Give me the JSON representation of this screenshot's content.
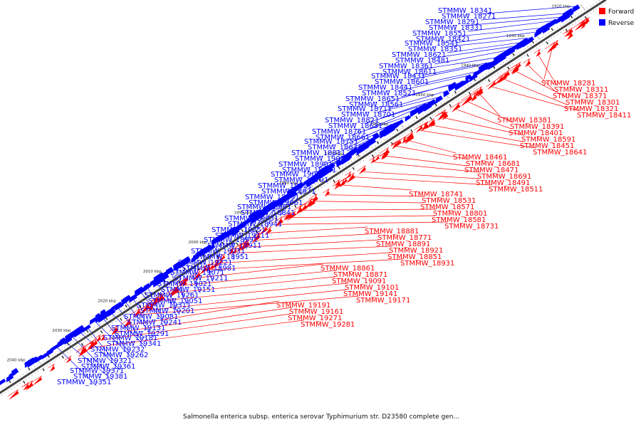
{
  "caption": "Salmonella enterica subsp. enterica serovar Typhimurium str. D23580 complete gen...",
  "legend": [
    {
      "label": "Forward",
      "color": "#ff0000"
    },
    {
      "label": "Reverse",
      "color": "#0000ff"
    }
  ],
  "colors": {
    "forward": "#ff0000",
    "reverse": "#0000ff",
    "backbone": "#444444"
  },
  "scale_ticks": [
    "1920 kbp",
    "1930 kbp",
    "1940 kbp",
    "1950 kbp",
    "1960 kbp",
    "1970 kbp",
    "1980 kbp",
    "1990 kbp",
    "2000 kbp",
    "2010 kbp",
    "2020 kbp",
    "2030 kbp",
    "2040 kbp"
  ],
  "reverse_labels": [
    "STMMW_18341",
    "STMMW_18271",
    "STMMW_18291",
    "STMMW_18331",
    "STMMW_18551",
    "STMMW_18421",
    "STMMW_18541",
    "STMMW_18351",
    "STMMW_18621",
    "STMMW_18481",
    "STMMW_18361",
    "STMMW_18611",
    "STMMW_18431",
    "STMMW_18601",
    "STMMW_18441",
    "STMMW_18521",
    "STMMW_18651",
    "STMMW_18561",
    "STMMW_18711",
    "STMMW_18701",
    "STMMW_18821",
    "STMMW_18631",
    "STMMW_18761",
    "STMMW_18661",
    "STMMW_18751",
    "STMMW_18671",
    "STMMW_18811",
    "STMMW_19011",
    "STMMW_18901",
    "STMMW_18721",
    "STMMW_19001",
    "STMMW_18791",
    "STMMW_19121",
    "STMMW_18971",
    "STMMW_18831",
    "STMMW_19061",
    "STMMW_18961",
    "STMMW_18841",
    "STMMW_19031",
    "STMMW_18941",
    "STMMW_19251",
    "STMMW_19111",
    "STMMW_18991",
    "STMMW_18911",
    "STMMW_19231",
    "STMMW_18951",
    "STMMW_19221",
    "STMMW_18981",
    "STMMW_19071",
    "STMMW_19211",
    "STMMW_19021",
    "STMMW_19151",
    "STMMW_19261",
    "STMMW_19051",
    "STMMW_19311",
    "STMMW_19201",
    "STMMW_19081",
    "STMMW_19241",
    "STMMW_19131",
    "STMMW_19291",
    "STMMW_19181",
    "STMMW_19341",
    "STMMW_19232",
    "STMMW_19262",
    "STMMW_19321",
    "STMMW_19361",
    "STMMW_19371",
    "STMMW_19381",
    "STMMW_19351"
  ],
  "forward_labels": [
    "STMMW_18281",
    "STMMW_18311",
    "STMMW_18371",
    "STMMW_18301",
    "STMMW_18321",
    "STMMW_18411",
    "STMMW_18381",
    "STMMW_18391",
    "STMMW_18401",
    "STMMW_18591",
    "STMMW_18451",
    "STMMW_18641",
    "STMMW_18461",
    "STMMW_18681",
    "STMMW_18471",
    "STMMW_18691",
    "STMMW_18491",
    "STMMW_18511",
    "STMMW_18741",
    "STMMW_18531",
    "STMMW_18571",
    "STMMW_18801",
    "STMMW_18581",
    "STMMW_18731",
    "STMMW_18881",
    "STMMW_18771",
    "STMMW_18891",
    "STMMW_18921",
    "STMMW_18851",
    "STMMW_18931",
    "STMMW_18861",
    "STMMW_18871",
    "STMMW_19091",
    "STMMW_19101",
    "STMMW_19141",
    "STMMW_19171",
    "STMMW_19191",
    "STMMW_19161",
    "STMMW_19271",
    "STMMW_19281"
  ]
}
